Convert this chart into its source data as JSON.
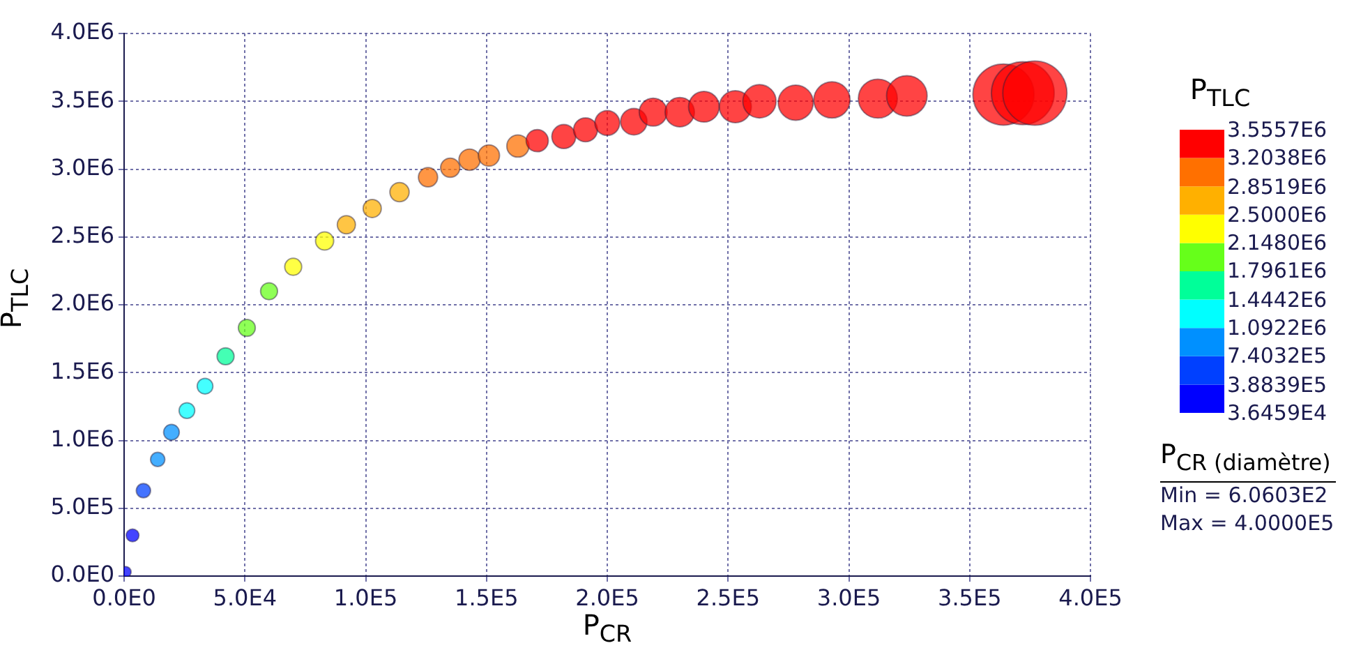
{
  "chart_data": {
    "type": "bubble",
    "xlabel": "P$_{CR}$",
    "ylabel": "P$_{TLC}$",
    "clabel": "P$_{TLC}$",
    "x": [
      600,
      3500,
      8000,
      13900,
      19600,
      26000,
      33500,
      42000,
      50800,
      60000,
      70000,
      83000,
      92000,
      102700,
      114000,
      125800,
      135000,
      143000,
      151000,
      163000,
      171000,
      182000,
      191000,
      200000,
      211000,
      219000,
      230000,
      240000,
      253000,
      263000,
      278000,
      293000,
      312000,
      324000,
      364000,
      372000,
      377000
    ],
    "values": [
      30000,
      300000,
      630000,
      860000,
      1060000,
      1220000,
      1400000,
      1620000,
      1830000,
      2100000,
      2280000,
      2470000,
      2590000,
      2710000,
      2830000,
      2940000,
      3010000,
      3070000,
      3100000,
      3170000,
      3210000,
      3240000,
      3290000,
      3340000,
      3350000,
      3420000,
      3420000,
      3460000,
      3460000,
      3500000,
      3490000,
      3510000,
      3520000,
      3540000,
      3550000,
      3560000,
      3560000
    ],
    "cvalues": [
      30000,
      300000,
      630000,
      860000,
      1060000,
      1220000,
      1400000,
      1620000,
      1830000,
      2100000,
      2280000,
      2470000,
      2590000,
      2710000,
      2830000,
      2940000,
      3010000,
      3070000,
      3100000,
      3170000,
      3210000,
      3240000,
      3290000,
      3340000,
      3350000,
      3420000,
      3420000,
      3460000,
      3460000,
      3500000,
      3490000,
      3510000,
      3520000,
      3540000,
      3550000,
      3560000,
      3560000
    ],
    "sizes": [
      0.03,
      0.04,
      0.05,
      0.05,
      0.06,
      0.06,
      0.06,
      0.07,
      0.07,
      0.07,
      0.07,
      0.08,
      0.08,
      0.08,
      0.09,
      0.09,
      0.09,
      0.11,
      0.11,
      0.12,
      0.12,
      0.14,
      0.14,
      0.15,
      0.17,
      0.19,
      0.21,
      0.23,
      0.25,
      0.27,
      0.3,
      0.32,
      0.37,
      0.4,
      0.91,
      0.96,
      1
    ],
    "xlim": [
      0,
      400000
    ],
    "xticks": [
      {
        "value": 0,
        "label": "0.0E0"
      },
      {
        "value": 50000,
        "label": "5.0E4"
      },
      {
        "value": 100000,
        "label": "1.0E5"
      },
      {
        "value": 150000,
        "label": "1.5E5"
      },
      {
        "value": 200000,
        "label": "2.0E5"
      },
      {
        "value": 250000,
        "label": "2.5E5"
      },
      {
        "value": 300000,
        "label": "3.0E5"
      },
      {
        "value": 350000,
        "label": "3.5E5"
      },
      {
        "value": 400000,
        "label": "4.0E5"
      }
    ],
    "ylim": [
      0,
      4000000
    ],
    "yticks": [
      {
        "value": 0,
        "label": "0.0E0"
      },
      {
        "value": 500000,
        "label": "5.0E5"
      },
      {
        "value": 1000000,
        "label": "1.0E6"
      },
      {
        "value": 1500000,
        "label": "1.5E6"
      },
      {
        "value": 2000000,
        "label": "2.0E6"
      },
      {
        "value": 2500000,
        "label": "2.5E6"
      },
      {
        "value": 3000000,
        "label": "3.0E6"
      },
      {
        "value": 3500000,
        "label": "3.5E6"
      },
      {
        "value": 4000000,
        "label": "4.0E6"
      }
    ],
    "clim": [
      36459,
      3555700
    ],
    "cticks": [
      {
        "value": 36459,
        "label": "3.6459E4"
      },
      {
        "value": 388390,
        "label": "3.8839E5"
      },
      {
        "value": 740320,
        "label": "7.4032E5"
      },
      {
        "value": 1092200,
        "label": "1.0922E6"
      },
      {
        "value": 1444200,
        "label": "1.4442E6"
      },
      {
        "value": 1796100,
        "label": "1.7961E6"
      },
      {
        "value": 2148000,
        "label": "2.1480E6"
      },
      {
        "value": 2500000,
        "label": "2.5000E6"
      },
      {
        "value": 2851900,
        "label": "2.8519E6"
      },
      {
        "value": 3203800,
        "label": "3.2038E6"
      },
      {
        "value": 3555700,
        "label": "3.5557E6"
      }
    ],
    "annotations": [
      "P$_{CR (diamètre)}$",
      "Min = 6.0603E2",
      "Max = 4.0000E5"
    ],
    "grid": true,
    "legend": false
  }
}
